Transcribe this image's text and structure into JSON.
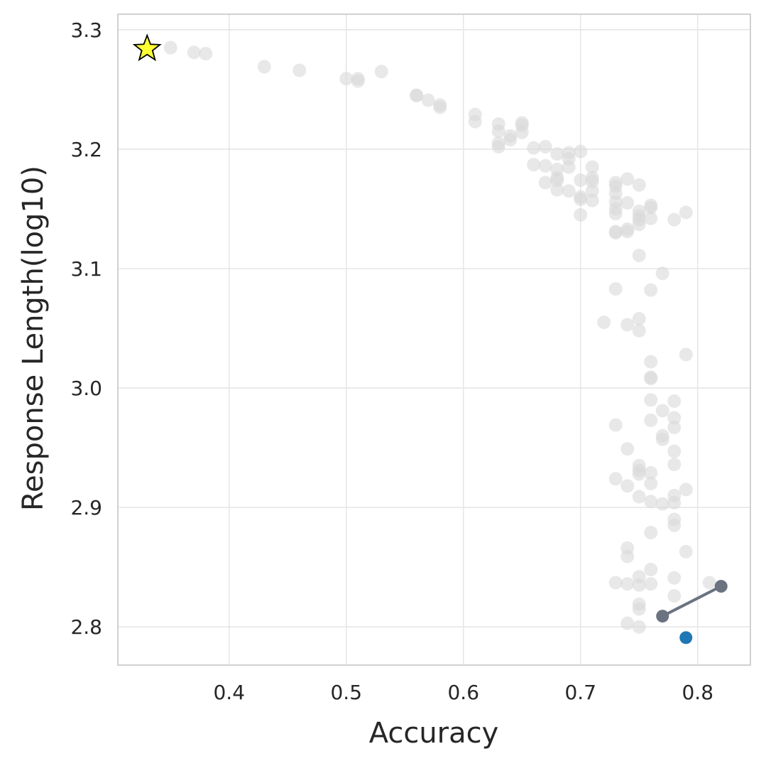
{
  "chart_data": {
    "type": "scatter",
    "title": "",
    "xlabel": "Accuracy",
    "ylabel": "Response Length(log10)",
    "xlim": [
      0.305,
      0.845
    ],
    "ylim": [
      2.768,
      3.313
    ],
    "x_ticks": [
      0.4,
      0.5,
      0.6,
      0.7,
      0.8
    ],
    "x_tick_labels": [
      "0.4",
      "0.5",
      "0.6",
      "0.7",
      "0.8"
    ],
    "y_ticks": [
      2.8,
      2.9,
      3.0,
      3.1,
      3.2,
      3.3
    ],
    "y_tick_labels": [
      "2.8",
      "2.9",
      "3.0",
      "3.1",
      "3.2",
      "3.3"
    ],
    "grid": true,
    "legend": false,
    "colors": {
      "background_points": "#d9d9d9",
      "line": "#6b7280",
      "highlight": "#1f77b4",
      "star_fill": "#ffff33",
      "star_edge": "#000000"
    },
    "series": [
      {
        "marker": "circle",
        "style": "background",
        "points": [
          [
            0.35,
            3.285
          ],
          [
            0.37,
            3.281
          ],
          [
            0.38,
            3.28
          ],
          [
            0.43,
            3.269
          ],
          [
            0.46,
            3.266
          ],
          [
            0.5,
            3.259
          ],
          [
            0.51,
            3.259
          ],
          [
            0.51,
            3.257
          ],
          [
            0.53,
            3.265
          ],
          [
            0.56,
            3.245
          ],
          [
            0.56,
            3.245
          ],
          [
            0.57,
            3.241
          ],
          [
            0.58,
            3.237
          ],
          [
            0.58,
            3.235
          ],
          [
            0.61,
            3.229
          ],
          [
            0.61,
            3.223
          ],
          [
            0.63,
            3.221
          ],
          [
            0.63,
            3.215
          ],
          [
            0.63,
            3.205
          ],
          [
            0.63,
            3.202
          ],
          [
            0.64,
            3.211
          ],
          [
            0.64,
            3.208
          ],
          [
            0.65,
            3.222
          ],
          [
            0.65,
            3.22
          ],
          [
            0.65,
            3.214
          ],
          [
            0.66,
            3.201
          ],
          [
            0.66,
            3.187
          ],
          [
            0.67,
            3.202
          ],
          [
            0.67,
            3.186
          ],
          [
            0.67,
            3.172
          ],
          [
            0.68,
            3.196
          ],
          [
            0.68,
            3.183
          ],
          [
            0.68,
            3.176
          ],
          [
            0.68,
            3.174
          ],
          [
            0.68,
            3.166
          ],
          [
            0.69,
            3.197
          ],
          [
            0.69,
            3.192
          ],
          [
            0.69,
            3.185
          ],
          [
            0.69,
            3.165
          ],
          [
            0.7,
            3.198
          ],
          [
            0.7,
            3.174
          ],
          [
            0.7,
            3.16
          ],
          [
            0.7,
            3.158
          ],
          [
            0.7,
            3.145
          ],
          [
            0.71,
            3.185
          ],
          [
            0.71,
            3.176
          ],
          [
            0.71,
            3.173
          ],
          [
            0.71,
            3.165
          ],
          [
            0.71,
            3.157
          ],
          [
            0.72,
            3.055
          ],
          [
            0.73,
            3.172
          ],
          [
            0.73,
            3.169
          ],
          [
            0.73,
            3.163
          ],
          [
            0.73,
            3.156
          ],
          [
            0.73,
            3.15
          ],
          [
            0.73,
            3.146
          ],
          [
            0.73,
            3.131
          ],
          [
            0.73,
            3.13
          ],
          [
            0.73,
            3.083
          ],
          [
            0.73,
            2.969
          ],
          [
            0.73,
            2.924
          ],
          [
            0.73,
            2.837
          ],
          [
            0.74,
            3.175
          ],
          [
            0.74,
            3.155
          ],
          [
            0.74,
            3.133
          ],
          [
            0.74,
            3.131
          ],
          [
            0.74,
            3.053
          ],
          [
            0.74,
            2.949
          ],
          [
            0.74,
            2.918
          ],
          [
            0.74,
            2.866
          ],
          [
            0.74,
            2.859
          ],
          [
            0.74,
            2.836
          ],
          [
            0.74,
            2.803
          ],
          [
            0.75,
            3.17
          ],
          [
            0.75,
            3.148
          ],
          [
            0.75,
            3.144
          ],
          [
            0.75,
            3.141
          ],
          [
            0.75,
            3.137
          ],
          [
            0.75,
            3.111
          ],
          [
            0.75,
            3.058
          ],
          [
            0.75,
            3.048
          ],
          [
            0.75,
            2.935
          ],
          [
            0.75,
            2.931
          ],
          [
            0.75,
            2.928
          ],
          [
            0.75,
            2.909
          ],
          [
            0.75,
            2.842
          ],
          [
            0.75,
            2.835
          ],
          [
            0.75,
            2.819
          ],
          [
            0.75,
            2.815
          ],
          [
            0.75,
            2.8
          ],
          [
            0.76,
            3.153
          ],
          [
            0.76,
            3.151
          ],
          [
            0.76,
            3.142
          ],
          [
            0.76,
            3.082
          ],
          [
            0.76,
            3.022
          ],
          [
            0.76,
            3.009
          ],
          [
            0.76,
            3.008
          ],
          [
            0.76,
            2.99
          ],
          [
            0.76,
            2.973
          ],
          [
            0.76,
            2.929
          ],
          [
            0.76,
            2.92
          ],
          [
            0.76,
            2.905
          ],
          [
            0.76,
            2.879
          ],
          [
            0.76,
            2.848
          ],
          [
            0.76,
            2.836
          ],
          [
            0.77,
            3.096
          ],
          [
            0.77,
            2.981
          ],
          [
            0.77,
            2.96
          ],
          [
            0.77,
            2.957
          ],
          [
            0.77,
            2.903
          ],
          [
            0.78,
            3.141
          ],
          [
            0.78,
            2.989
          ],
          [
            0.78,
            2.975
          ],
          [
            0.78,
            2.967
          ],
          [
            0.78,
            2.947
          ],
          [
            0.78,
            2.936
          ],
          [
            0.78,
            2.91
          ],
          [
            0.78,
            2.904
          ],
          [
            0.78,
            2.89
          ],
          [
            0.78,
            2.885
          ],
          [
            0.78,
            2.841
          ],
          [
            0.78,
            2.826
          ],
          [
            0.79,
            3.147
          ],
          [
            0.79,
            3.028
          ],
          [
            0.79,
            2.915
          ],
          [
            0.79,
            2.863
          ],
          [
            0.81,
            2.837
          ]
        ]
      },
      {
        "marker": "line",
        "style": "connector",
        "points": [
          [
            0.77,
            2.809
          ],
          [
            0.82,
            2.834
          ]
        ]
      },
      {
        "marker": "circle",
        "style": "highlight",
        "points": [
          [
            0.79,
            2.791
          ]
        ]
      },
      {
        "marker": "star",
        "style": "star",
        "points": [
          [
            0.33,
            3.284
          ]
        ]
      }
    ]
  }
}
